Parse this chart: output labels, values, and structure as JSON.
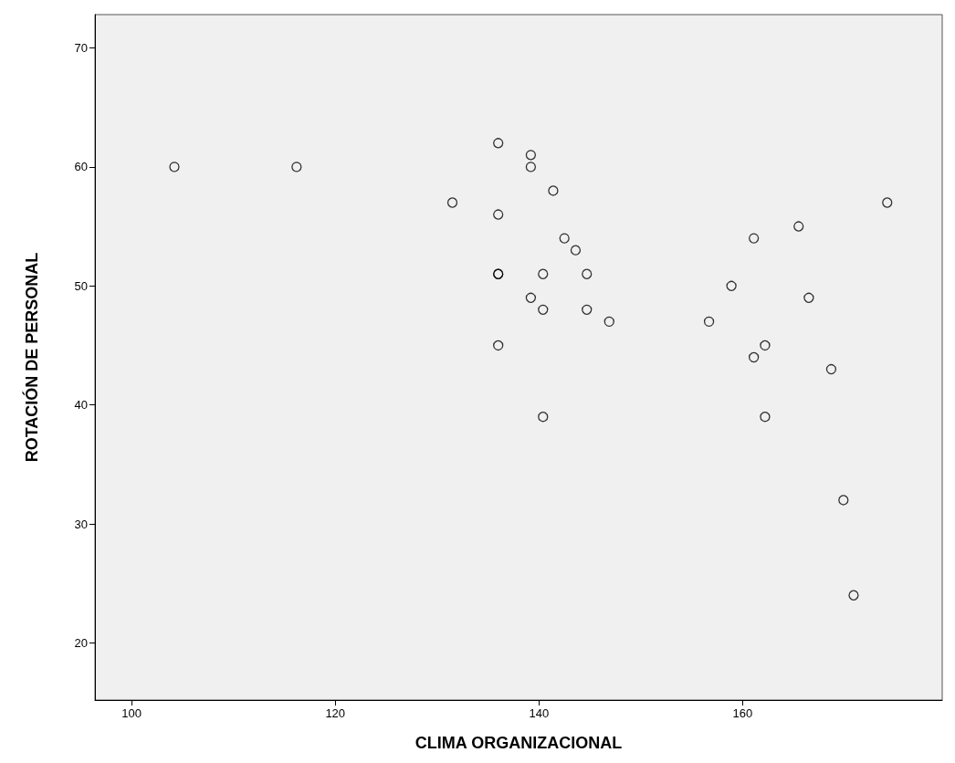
{
  "chart_data": {
    "type": "scatter",
    "xlabel": "CLIMA ORGANIZACIONAL",
    "ylabel": "ROTACIÓN DE PERSONAL",
    "x": [
      104.2,
      116.2,
      131.5,
      136,
      136,
      136,
      136,
      136,
      139.2,
      139.2,
      139.2,
      140.4,
      140.4,
      140.4,
      141.4,
      142.5,
      143.6,
      144.7,
      144.7,
      146.9,
      156.7,
      158.9,
      161.1,
      161.1,
      162.2,
      162.2,
      165.5,
      166.5,
      168.7,
      169.9,
      170.9,
      174.2
    ],
    "values": [
      60,
      60,
      57,
      62,
      56,
      51,
      51,
      45,
      61,
      60,
      49,
      51,
      48,
      39,
      58,
      54,
      53,
      51,
      48,
      47,
      47,
      50,
      54,
      44,
      45,
      39,
      55,
      49,
      43,
      32,
      24,
      57
    ],
    "color": "#000000",
    "marker": "circle",
    "grid": false,
    "xlim": [
      96.4,
      179.6
    ],
    "xticks": [
      100,
      120,
      140,
      160
    ],
    "ylim": [
      15.2,
      72.8
    ],
    "yticks": [
      20,
      30,
      40,
      50,
      60,
      70
    ]
  }
}
